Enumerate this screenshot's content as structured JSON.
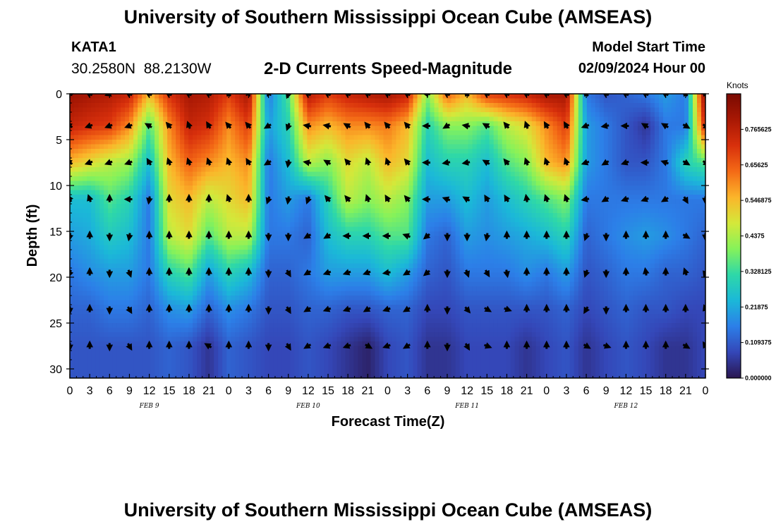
{
  "page": {
    "title": "University of Southern Mississippi Ocean Cube (AMSEAS)",
    "footer_title": "University of Southern Mississippi Ocean Cube (AMSEAS)",
    "station": "KATA1",
    "coords": "30.2580N  88.2130W",
    "subtitle": "2-D Currents Speed-Magnitude",
    "model_start_label": "Model Start Time",
    "model_start_value": "02/09/2024 Hour 00"
  },
  "colors": {
    "scale": [
      "#2a1650",
      "#3447b8",
      "#2c7fe8",
      "#1bb8d8",
      "#2ed8a8",
      "#86f25a",
      "#d4e83a",
      "#fbb52a",
      "#f46a16",
      "#d8300c",
      "#a81804",
      "#7a0a02"
    ]
  },
  "chart_data": {
    "type": "heatmap",
    "xlabel": "Forecast Time(Z)",
    "ylabel": "Depth (ft)",
    "x_range": [
      0,
      96
    ],
    "y_range": [
      0,
      31
    ],
    "x_ticks": [
      "0",
      "3",
      "6",
      "9",
      "12",
      "15",
      "18",
      "21",
      "0",
      "3",
      "6",
      "9",
      "12",
      "15",
      "18",
      "21",
      "0",
      "3",
      "6",
      "9",
      "12",
      "15",
      "18",
      "21",
      "0",
      "3",
      "6",
      "9",
      "12",
      "15",
      "18",
      "21",
      "0"
    ],
    "y_ticks": [
      "0",
      "5",
      "10",
      "15",
      "20",
      "25",
      "30"
    ],
    "date_labels": [
      {
        "label": "FEB 9",
        "hour": 12
      },
      {
        "label": "FEB 10",
        "hour": 36
      },
      {
        "label": "FEB 11",
        "hour": 60
      },
      {
        "label": "FEB 12",
        "hour": 84
      }
    ],
    "colorbar": {
      "unit": "Knots",
      "ticks": [
        "0.765625",
        "0.65625",
        "0.546875",
        "0.4375",
        "0.328125",
        "0.21875",
        "0.109375",
        "0.000000"
      ],
      "min": 0,
      "max": 0.875
    },
    "depth_levels": [
      0,
      3.5,
      7.5,
      11.5,
      15.5,
      19.5,
      23.5,
      27.5
    ],
    "hours": [
      0,
      3,
      6,
      9,
      12,
      15,
      18,
      21,
      24,
      27,
      30,
      33,
      36,
      39,
      42,
      45,
      48,
      51,
      54,
      57,
      60,
      63,
      66,
      69,
      72,
      75,
      78,
      81,
      84,
      87,
      90,
      93,
      96
    ],
    "speed_knots": [
      [
        0.82,
        0.8,
        0.78,
        0.75,
        0.55,
        0.72,
        0.8,
        0.78,
        0.7,
        0.8,
        0.15,
        0.35,
        0.78,
        0.7,
        0.75,
        0.78,
        0.8,
        0.75,
        0.4,
        0.65,
        0.55,
        0.7,
        0.72,
        0.75,
        0.8,
        0.8,
        0.15,
        0.1,
        0.12,
        0.15,
        0.2,
        0.15,
        0.85
      ],
      [
        0.75,
        0.72,
        0.7,
        0.6,
        0.35,
        0.6,
        0.75,
        0.72,
        0.6,
        0.7,
        0.2,
        0.3,
        0.6,
        0.55,
        0.6,
        0.6,
        0.62,
        0.55,
        0.3,
        0.4,
        0.4,
        0.35,
        0.45,
        0.5,
        0.6,
        0.7,
        0.2,
        0.15,
        0.1,
        0.05,
        0.15,
        0.15,
        0.75
      ],
      [
        0.55,
        0.5,
        0.45,
        0.42,
        0.25,
        0.55,
        0.65,
        0.6,
        0.55,
        0.6,
        0.15,
        0.25,
        0.45,
        0.4,
        0.5,
        0.45,
        0.55,
        0.5,
        0.25,
        0.3,
        0.3,
        0.25,
        0.35,
        0.4,
        0.55,
        0.6,
        0.2,
        0.15,
        0.1,
        0.1,
        0.15,
        0.3,
        0.35
      ],
      [
        0.25,
        0.25,
        0.35,
        0.3,
        0.15,
        0.5,
        0.55,
        0.45,
        0.5,
        0.55,
        0.15,
        0.2,
        0.15,
        0.3,
        0.45,
        0.4,
        0.45,
        0.4,
        0.2,
        0.2,
        0.25,
        0.2,
        0.25,
        0.3,
        0.35,
        0.4,
        0.15,
        0.15,
        0.15,
        0.15,
        0.15,
        0.15,
        0.15
      ],
      [
        0.2,
        0.22,
        0.28,
        0.25,
        0.15,
        0.45,
        0.5,
        0.35,
        0.45,
        0.45,
        0.15,
        0.15,
        0.12,
        0.25,
        0.3,
        0.3,
        0.35,
        0.35,
        0.15,
        0.12,
        0.2,
        0.18,
        0.2,
        0.22,
        0.25,
        0.3,
        0.12,
        0.15,
        0.18,
        0.2,
        0.18,
        0.15,
        0.12
      ],
      [
        0.15,
        0.18,
        0.2,
        0.2,
        0.15,
        0.3,
        0.35,
        0.2,
        0.3,
        0.25,
        0.12,
        0.12,
        0.15,
        0.2,
        0.2,
        0.2,
        0.25,
        0.2,
        0.12,
        0.1,
        0.15,
        0.15,
        0.15,
        0.18,
        0.15,
        0.2,
        0.1,
        0.12,
        0.15,
        0.15,
        0.12,
        0.12,
        0.1
      ],
      [
        0.12,
        0.12,
        0.15,
        0.15,
        0.12,
        0.18,
        0.2,
        0.12,
        0.18,
        0.15,
        0.1,
        0.1,
        0.12,
        0.12,
        0.1,
        0.1,
        0.12,
        0.12,
        0.08,
        0.08,
        0.1,
        0.1,
        0.1,
        0.1,
        0.1,
        0.12,
        0.08,
        0.1,
        0.12,
        0.1,
        0.1,
        0.08,
        0.08
      ],
      [
        0.1,
        0.1,
        0.1,
        0.1,
        0.1,
        0.12,
        0.1,
        0.05,
        0.12,
        0.1,
        0.08,
        0.08,
        0.1,
        0.08,
        0.05,
        0.02,
        0.08,
        0.1,
        0.05,
        0.05,
        0.08,
        0.08,
        0.08,
        0.05,
        0.08,
        0.1,
        0.05,
        0.08,
        0.1,
        0.08,
        0.05,
        0.05,
        0.08
      ]
    ],
    "direction_deg": [
      [
        300,
        300,
        250,
        300,
        300,
        300,
        300,
        300,
        320,
        340,
        20,
        200,
        300,
        300,
        300,
        300,
        300,
        300,
        280,
        300,
        320,
        300,
        300,
        300,
        300,
        300,
        320,
        300,
        300,
        300,
        300,
        320,
        320
      ],
      [
        300,
        250,
        250,
        250,
        300,
        320,
        340,
        330,
        320,
        320,
        240,
        200,
        280,
        280,
        300,
        320,
        320,
        320,
        270,
        240,
        280,
        300,
        320,
        340,
        330,
        330,
        250,
        260,
        270,
        300,
        300,
        120,
        120
      ],
      [
        300,
        250,
        250,
        250,
        330,
        340,
        340,
        340,
        340,
        330,
        240,
        190,
        280,
        300,
        320,
        340,
        340,
        320,
        270,
        260,
        260,
        300,
        320,
        340,
        340,
        340,
        250,
        240,
        250,
        270,
        290,
        120,
        120
      ],
      [
        330,
        340,
        0,
        270,
        190,
        0,
        0,
        0,
        340,
        0,
        200,
        190,
        200,
        320,
        320,
        340,
        330,
        320,
        270,
        290,
        300,
        330,
        330,
        350,
        340,
        340,
        260,
        240,
        250,
        250,
        240,
        150,
        180
      ],
      [
        190,
        0,
        180,
        190,
        0,
        0,
        0,
        0,
        0,
        0,
        180,
        180,
        240,
        240,
        270,
        270,
        270,
        290,
        230,
        180,
        180,
        190,
        0,
        0,
        0,
        0,
        200,
        180,
        0,
        0,
        0,
        120,
        180
      ],
      [
        200,
        0,
        180,
        160,
        0,
        0,
        0,
        0,
        0,
        0,
        180,
        150,
        240,
        250,
        250,
        250,
        260,
        240,
        230,
        180,
        160,
        150,
        170,
        0,
        0,
        0,
        200,
        180,
        0,
        350,
        0,
        340,
        200
      ],
      [
        180,
        0,
        180,
        150,
        0,
        0,
        0,
        0,
        0,
        0,
        180,
        150,
        240,
        250,
        250,
        240,
        250,
        240,
        0,
        180,
        140,
        120,
        110,
        0,
        0,
        0,
        210,
        180,
        0,
        0,
        0,
        0,
        340
      ],
      [
        180,
        0,
        180,
        150,
        0,
        0,
        0,
        300,
        0,
        0,
        180,
        150,
        240,
        250,
        250,
        120,
        250,
        240,
        0,
        180,
        150,
        110,
        0,
        0,
        0,
        0,
        120,
        110,
        0,
        0,
        0,
        120,
        330
      ]
    ]
  }
}
